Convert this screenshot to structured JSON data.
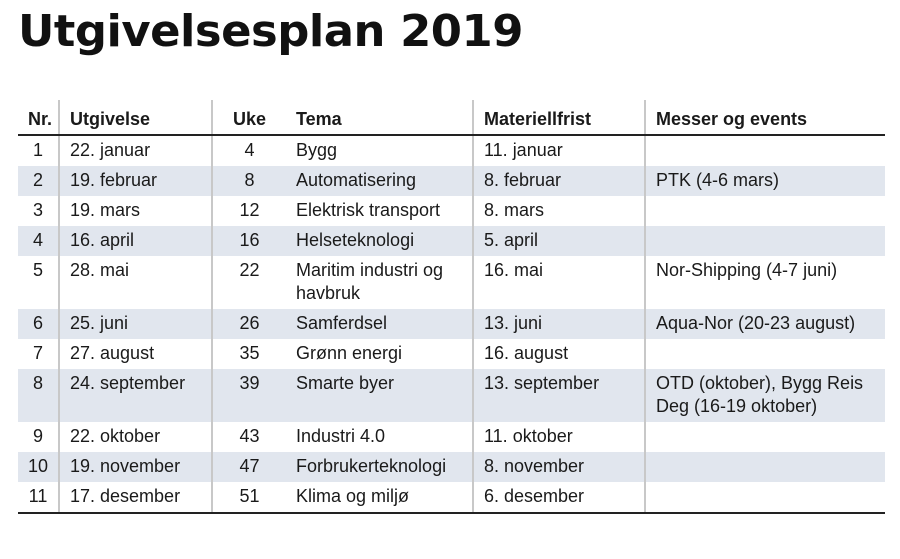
{
  "title": "Utgivelsesplan 2019",
  "headers": [
    "Nr.",
    "Utgivelse",
    "Uke",
    "Tema",
    "Materiellfrist",
    "Messer og events"
  ],
  "rows": [
    [
      "1",
      "22. januar",
      "4",
      "Bygg",
      "11. januar",
      ""
    ],
    [
      "2",
      "19. februar",
      "8",
      "Automatisering",
      "8. februar",
      "PTK (4-6 mars)"
    ],
    [
      "3",
      "19. mars",
      "12",
      "Elektrisk transport",
      "8. mars",
      ""
    ],
    [
      "4",
      "16. april",
      "16",
      "Helseteknologi",
      "5. april",
      ""
    ],
    [
      "5",
      "28. mai",
      "22",
      "Maritim industri og havbruk",
      "16. mai",
      "Nor-Shipping (4-7 juni)"
    ],
    [
      "6",
      "25. juni",
      "26",
      "Samferdsel",
      "13. juni",
      "Aqua-Nor (20-23 august)"
    ],
    [
      "7",
      "27. august",
      "35",
      "Grønn energi",
      "16. august",
      ""
    ],
    [
      "8",
      "24. september",
      "39",
      "Smarte byer",
      "13. september",
      "OTD (oktober), Bygg Reis Deg (16-19 oktober)"
    ],
    [
      "9",
      "22. oktober",
      "43",
      "Industri 4.0",
      "11. oktober",
      ""
    ],
    [
      "10",
      "19. november",
      "47",
      "Forbrukerteknologi",
      "8. november",
      ""
    ],
    [
      "11",
      "17. desember",
      "51",
      "Klima og miljø",
      "6. desember",
      ""
    ]
  ],
  "colors": {
    "row_shade": "#e1e6ee",
    "rule": "#222222",
    "separator": "#c8c8c8"
  }
}
